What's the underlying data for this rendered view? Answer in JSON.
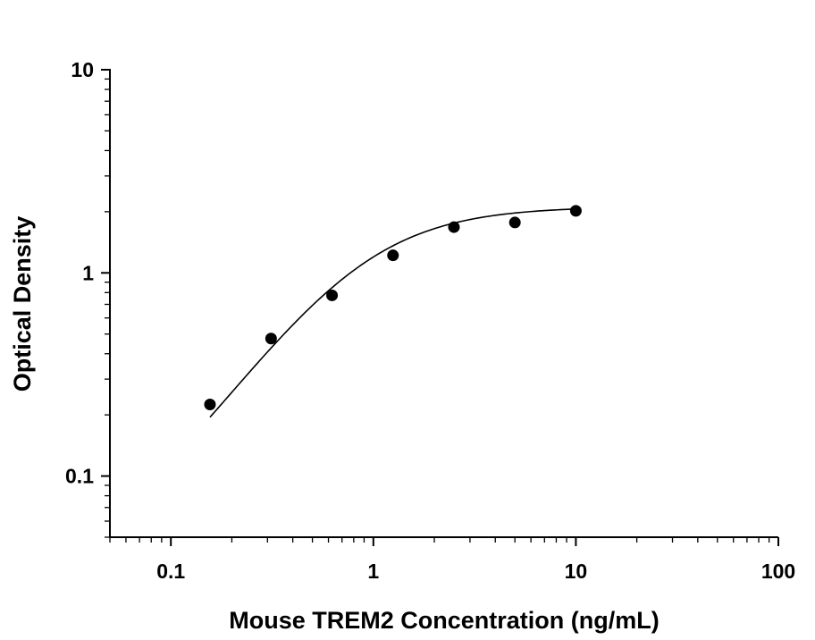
{
  "chart_data": {
    "type": "scatter",
    "title": "",
    "xlabel": "Mouse TREM2 Concentration (ng/mL)",
    "ylabel": "Optical Density",
    "xscale": "log",
    "yscale": "log",
    "xlim": [
      0.05,
      100
    ],
    "ylim": [
      0.05,
      10
    ],
    "x_ticks": [
      {
        "value": 0.1,
        "label": "0.1"
      },
      {
        "value": 1,
        "label": "1"
      },
      {
        "value": 10,
        "label": "10"
      },
      {
        "value": 100,
        "label": "100"
      }
    ],
    "y_ticks": [
      {
        "value": 0.1,
        "label": "0.1"
      },
      {
        "value": 1,
        "label": "1"
      },
      {
        "value": 10,
        "label": "10"
      }
    ],
    "grid": false,
    "legend": "none",
    "marker_color": "#000000",
    "curve_color": "#000000",
    "series": [
      {
        "x": [
          0.156,
          0.3125,
          0.625,
          1.25,
          2.5,
          5,
          10
        ],
        "y": [
          0.225,
          0.475,
          0.775,
          1.22,
          1.68,
          1.77,
          2.02
        ]
      }
    ],
    "fit_curve": {
      "type": "4PL",
      "bottom": 0.03,
      "top": 2.12,
      "ec50": 0.85,
      "hill": 1.45
    }
  }
}
